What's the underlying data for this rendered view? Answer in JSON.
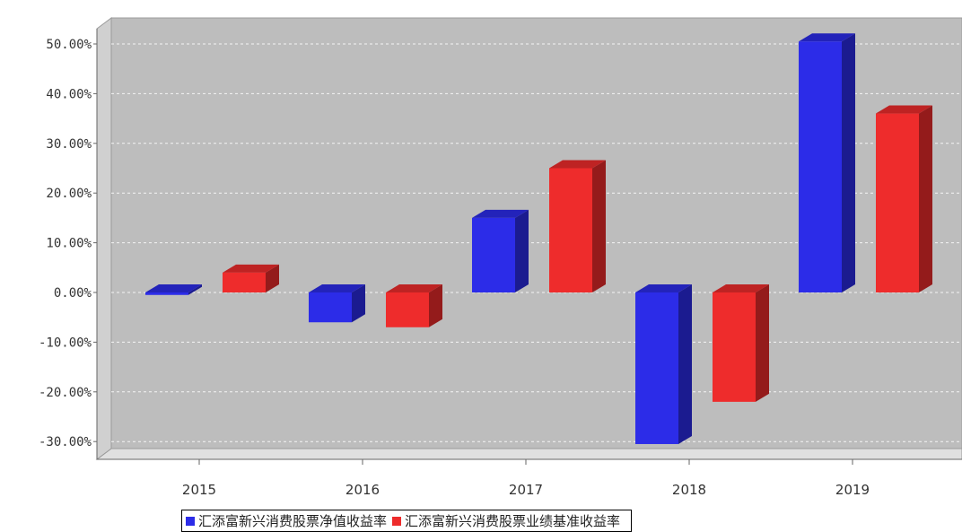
{
  "chart_data": {
    "type": "bar",
    "categories": [
      "2015",
      "2016",
      "2017",
      "2018",
      "2019"
    ],
    "series": [
      {
        "name": "汇添富新兴消费股票净值收益率",
        "values": [
          -0.5,
          -6.0,
          15.0,
          -30.5,
          50.5
        ],
        "color": "#2c2ce8"
      },
      {
        "name": "汇添富新兴消费股票业绩基准收益率",
        "values": [
          4.0,
          -7.0,
          25.0,
          -22.0,
          36.0
        ],
        "color": "#ee2c2c"
      }
    ],
    "yticks": [
      "50.00%",
      "40.00%",
      "30.00%",
      "20.00%",
      "10.00%",
      "0.00%",
      "-10.00%",
      "-20.00%",
      "-30.00%"
    ],
    "ytick_values": [
      50,
      40,
      30,
      20,
      10,
      0,
      -10,
      -20,
      -30
    ],
    "ylim": [
      -34,
      55
    ],
    "grid": true,
    "legend_position": "bottom-center",
    "title": "",
    "xlabel": "",
    "ylabel": ""
  }
}
